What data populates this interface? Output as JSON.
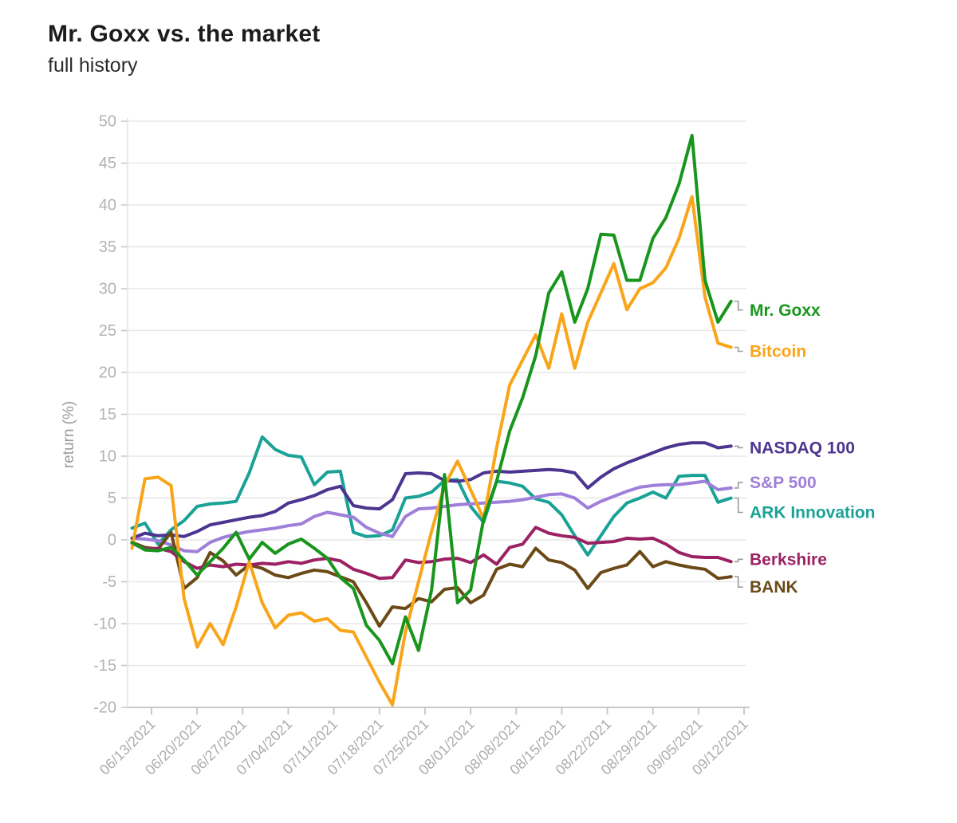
{
  "header": {
    "title": "Mr. Goxx vs. the market",
    "subtitle": "full history"
  },
  "chart_data": {
    "type": "line",
    "title": "Mr. Goxx vs. the market",
    "subtitle": "full history",
    "ylabel": "return (%)",
    "ylim": [
      -20,
      50
    ],
    "yticks": [
      50,
      45,
      40,
      35,
      30,
      25,
      20,
      15,
      10,
      5,
      0,
      -5,
      -10,
      -15,
      -20
    ],
    "grid": true,
    "legend_position": "right-of-line-ends",
    "x_tick_labels": [
      "06/13/2021",
      "06/20/2021",
      "06/27/2021",
      "07/04/2021",
      "07/11/2021",
      "07/18/2021",
      "07/25/2021",
      "08/01/2021",
      "08/08/2021",
      "08/15/2021",
      "08/22/2021",
      "08/29/2021",
      "09/05/2021",
      "09/12/2021"
    ],
    "x_tick_days": [
      3,
      10,
      17,
      24,
      31,
      38,
      45,
      52,
      59,
      66,
      73,
      80,
      87,
      94
    ],
    "x_start_date": "06/10/2021",
    "x_step_days": 2,
    "axis_color": "#c9c9c9",
    "grid_color": "#e8e8e8",
    "tick_label_color": "#b3b3b3",
    "series": [
      {
        "name": "Mr. Goxx",
        "color": "#18951c",
        "values": [
          -0.3,
          -1.2,
          -1.3,
          -0.9,
          -2.4,
          -4.2,
          -2.6,
          -1.0,
          0.9,
          -2.3,
          -0.3,
          -1.6,
          -0.5,
          0.1,
          -1.0,
          -2.2,
          -4.5,
          -5.8,
          -10.2,
          -12.0,
          -14.8,
          -9.2,
          -13.2,
          -6.0,
          7.8,
          -7.5,
          -6.0,
          2.5,
          7.0,
          13.0,
          17.0,
          22.0,
          29.5,
          32.0,
          26.0,
          30.0,
          36.5,
          36.4,
          31.0,
          31.0,
          36.0,
          38.5,
          42.5,
          48.3,
          31.0,
          26.0,
          28.5
        ]
      },
      {
        "name": "Bitcoin",
        "color": "#f9a51a",
        "values": [
          -1.0,
          7.3,
          7.5,
          6.5,
          -7.0,
          -12.8,
          -10.0,
          -12.5,
          -8.0,
          -2.6,
          -7.5,
          -10.5,
          -9.0,
          -8.7,
          -9.7,
          -9.4,
          -10.8,
          -11.0,
          -14.0,
          -17.0,
          -19.7,
          -11.0,
          -5.0,
          1.0,
          6.5,
          9.4,
          6.0,
          2.5,
          11.0,
          18.5,
          21.5,
          24.5,
          20.5,
          27.0,
          20.5,
          26.0,
          29.5,
          33.0,
          27.5,
          30.0,
          30.7,
          32.5,
          36.0,
          41.0,
          29.0,
          23.5,
          23.0
        ]
      },
      {
        "name": "NASDAQ 100",
        "color": "#4c3590",
        "values": [
          0.2,
          0.8,
          0.5,
          0.6,
          0.4,
          1.0,
          1.8,
          2.1,
          2.4,
          2.7,
          2.9,
          3.4,
          4.4,
          4.8,
          5.3,
          6.0,
          6.4,
          4.1,
          3.8,
          3.7,
          4.8,
          7.9,
          8.0,
          7.9,
          7.1,
          7.0,
          7.2,
          8.0,
          8.2,
          8.1,
          8.2,
          8.3,
          8.4,
          8.3,
          8.0,
          6.2,
          7.5,
          8.5,
          9.2,
          9.8,
          10.4,
          11.0,
          11.4,
          11.6,
          11.6,
          11.0,
          11.2
        ]
      },
      {
        "name": "S&P 500",
        "color": "#9e7fd9",
        "values": [
          0.2,
          0.1,
          -0.1,
          -0.6,
          -1.3,
          -1.4,
          -0.3,
          0.3,
          0.7,
          1.0,
          1.2,
          1.4,
          1.7,
          1.9,
          2.8,
          3.3,
          3.0,
          2.7,
          1.5,
          0.8,
          0.4,
          2.8,
          3.7,
          3.8,
          4.0,
          4.2,
          4.3,
          4.4,
          4.5,
          4.6,
          4.8,
          5.1,
          5.4,
          5.5,
          5.0,
          3.8,
          4.6,
          5.2,
          5.8,
          6.3,
          6.5,
          6.6,
          6.6,
          6.8,
          7.0,
          6.0,
          6.2
        ]
      },
      {
        "name": "ARK Innovation",
        "color": "#1aa297",
        "values": [
          1.4,
          2.0,
          -0.5,
          1.2,
          2.3,
          4.0,
          4.3,
          4.4,
          4.6,
          8.0,
          12.3,
          10.8,
          10.1,
          9.9,
          6.6,
          8.1,
          8.2,
          0.9,
          0.4,
          0.5,
          1.2,
          5.0,
          5.2,
          5.7,
          7.1,
          7.2,
          4.0,
          2.1,
          7.0,
          6.8,
          6.4,
          4.9,
          4.5,
          3.0,
          0.5,
          -1.8,
          0.5,
          2.8,
          4.4,
          5.0,
          5.7,
          5.0,
          7.6,
          7.7,
          7.7,
          4.5,
          5.0
        ]
      },
      {
        "name": "Berkshire",
        "color": "#9b2164",
        "values": [
          -0.4,
          -1.1,
          -1.0,
          -1.4,
          -2.6,
          -3.4,
          -3.0,
          -3.2,
          -2.9,
          -3.0,
          -2.8,
          -2.9,
          -2.6,
          -2.8,
          -2.4,
          -2.2,
          -2.5,
          -3.5,
          -4.0,
          -4.6,
          -4.5,
          -2.4,
          -2.7,
          -2.6,
          -2.3,
          -2.2,
          -2.7,
          -1.8,
          -2.9,
          -0.9,
          -0.5,
          1.5,
          0.8,
          0.5,
          0.3,
          -0.4,
          -0.3,
          -0.2,
          0.2,
          0.1,
          0.2,
          -0.5,
          -1.5,
          -2.0,
          -2.1,
          -2.1,
          -2.6
        ]
      },
      {
        "name": "BANK",
        "color": "#6b4a17",
        "values": [
          -0.3,
          -0.9,
          -1.1,
          0.9,
          -5.8,
          -4.5,
          -1.5,
          -2.5,
          -4.2,
          -3.0,
          -3.4,
          -4.2,
          -4.5,
          -4.0,
          -3.6,
          -3.8,
          -4.4,
          -5.0,
          -7.5,
          -10.3,
          -8.0,
          -8.2,
          -7.0,
          -7.4,
          -5.9,
          -5.7,
          -7.5,
          -6.6,
          -3.5,
          -2.9,
          -3.2,
          -1.0,
          -2.4,
          -2.7,
          -3.6,
          -5.8,
          -3.9,
          -3.4,
          -3.0,
          -1.4,
          -3.2,
          -2.6,
          -3.0,
          -3.3,
          -3.5,
          -4.6,
          -4.4
        ]
      }
    ]
  }
}
